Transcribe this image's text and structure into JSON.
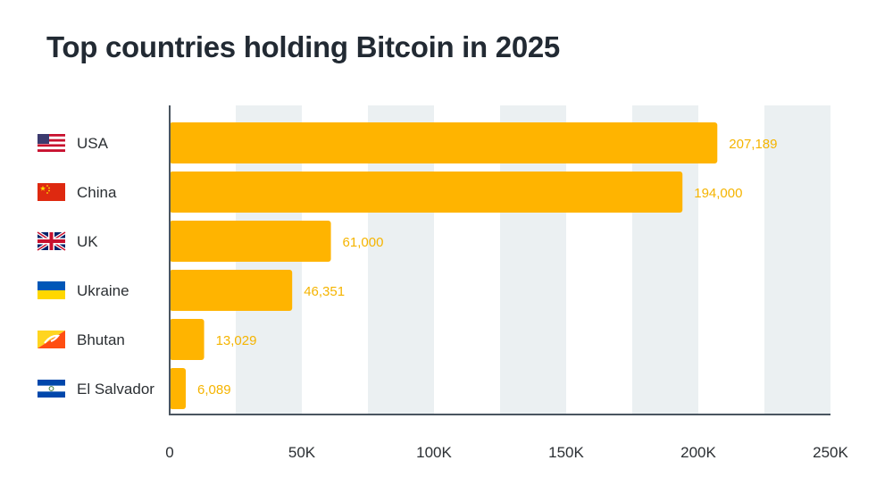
{
  "chart_data": {
    "type": "bar",
    "orientation": "horizontal",
    "title": "Top countries holding Bitcoin in 2025",
    "categories": [
      "USA",
      "China",
      "UK",
      "Ukraine",
      "Bhutan",
      "El Salvador"
    ],
    "values": [
      207189,
      194000,
      61000,
      46351,
      13029,
      6089
    ],
    "value_labels": [
      "207,189",
      "194,000",
      "61,000",
      "46,351",
      "13,029",
      "6,089"
    ],
    "flag_icons": [
      "usa-flag-icon",
      "china-flag-icon",
      "uk-flag-icon",
      "ukraine-flag-icon",
      "bhutan-flag-icon",
      "el-salvador-flag-icon"
    ],
    "xlim": [
      0,
      250000
    ],
    "xticks": [
      0,
      50000,
      100000,
      150000,
      200000,
      250000
    ],
    "xtick_labels": [
      "0",
      "50K",
      "100K",
      "150K",
      "200K",
      "250K"
    ],
    "xlabel": "",
    "ylabel": "",
    "grid": "alternating vertical bands",
    "colors": {
      "bar": "#ffb400",
      "value_label": "#f5b400",
      "band": "#ebf0f2",
      "axis": "#4a5560",
      "text": "#2b2f33",
      "title": "#222a33"
    }
  }
}
